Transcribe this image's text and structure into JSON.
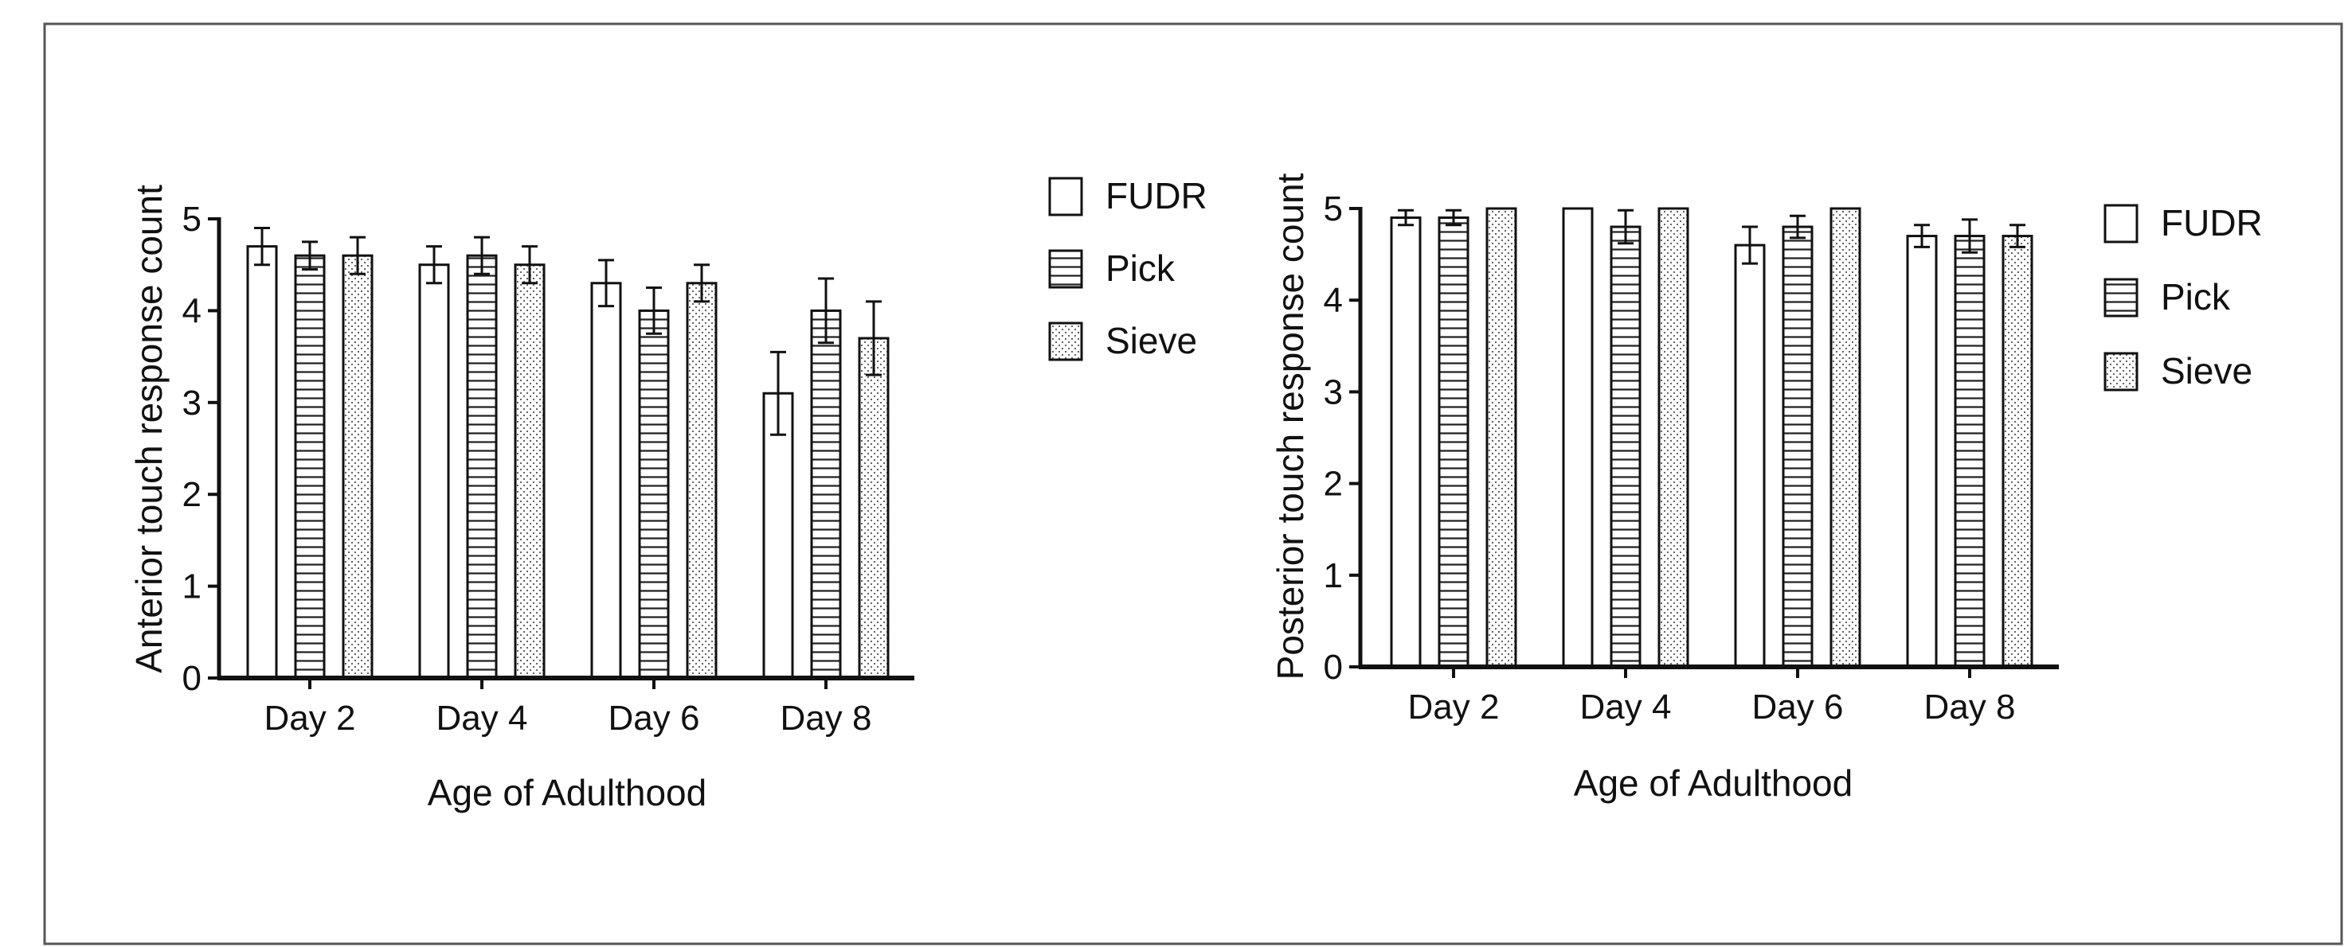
{
  "chart_data": [
    {
      "type": "bar",
      "title": "",
      "xlabel": "Age of Adulthood",
      "ylabel": "Anterior touch response count",
      "ylim": [
        0,
        5
      ],
      "yticks": [
        "0",
        "1",
        "2",
        "3",
        "4",
        "5"
      ],
      "grid": false,
      "legend_position": "right",
      "categories": [
        "Day 2",
        "Day 4",
        "Day 6",
        "Day 8"
      ],
      "series": [
        {
          "name": "FUDR",
          "pattern": "blank",
          "values": [
            4.7,
            4.5,
            4.3,
            3.1
          ],
          "errors": [
            0.2,
            0.2,
            0.25,
            0.45
          ]
        },
        {
          "name": "Pick",
          "pattern": "horizontal",
          "values": [
            4.6,
            4.6,
            4.0,
            4.0
          ],
          "errors": [
            0.15,
            0.2,
            0.25,
            0.35
          ]
        },
        {
          "name": "Sieve",
          "pattern": "dotted",
          "values": [
            4.6,
            4.5,
            4.3,
            3.7
          ],
          "errors": [
            0.2,
            0.2,
            0.2,
            0.4
          ]
        }
      ]
    },
    {
      "type": "bar",
      "title": "",
      "xlabel": "Age of Adulthood",
      "ylabel": "Posterior touch response count",
      "ylim": [
        0,
        5
      ],
      "yticks": [
        "0",
        "1",
        "2",
        "3",
        "4",
        "5"
      ],
      "grid": false,
      "legend_position": "right",
      "categories": [
        "Day 2",
        "Day 4",
        "Day 6",
        "Day 8"
      ],
      "series": [
        {
          "name": "FUDR",
          "pattern": "blank",
          "values": [
            4.9,
            5.0,
            4.6,
            4.7
          ],
          "errors": [
            0.08,
            0,
            0.2,
            0.12
          ]
        },
        {
          "name": "Pick",
          "pattern": "horizontal",
          "values": [
            4.9,
            4.8,
            4.8,
            4.7
          ],
          "errors": [
            0.08,
            0.18,
            0.12,
            0.18
          ]
        },
        {
          "name": "Sieve",
          "pattern": "dotted",
          "values": [
            5.0,
            5.0,
            5.0,
            4.7
          ],
          "errors": [
            0,
            0,
            0,
            0.12
          ]
        }
      ]
    }
  ]
}
